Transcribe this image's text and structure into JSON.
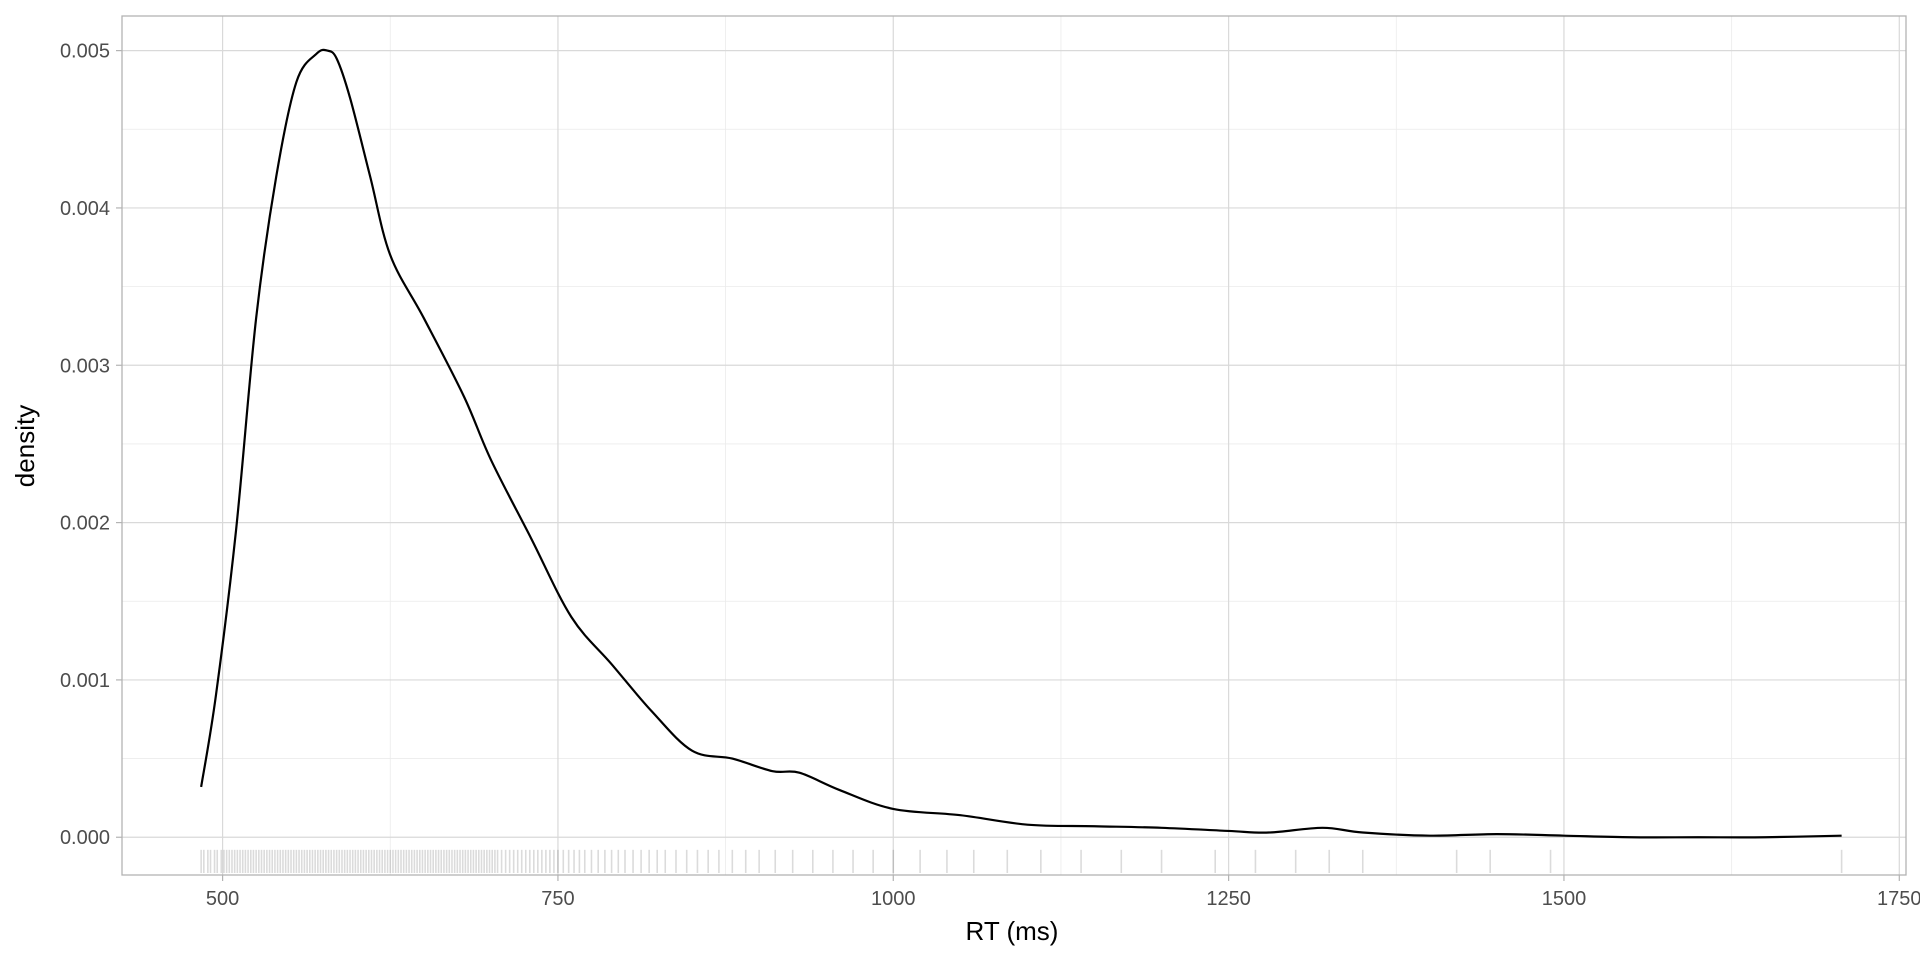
{
  "chart_data": {
    "type": "line",
    "xlabel": "RT (ms)",
    "ylabel": "density",
    "xlim": [
      425,
      1755
    ],
    "ylim": [
      -0.00024,
      0.00522
    ],
    "x_ticks": [
      500,
      750,
      1000,
      1250,
      1500,
      1750
    ],
    "x_tick_labels": [
      "500",
      "750",
      "1000",
      "1250",
      "1500",
      "1750"
    ],
    "y_ticks": [
      0.0,
      0.001,
      0.002,
      0.003,
      0.004,
      0.005
    ],
    "y_tick_labels": [
      "0.000",
      "0.001",
      "0.002",
      "0.003",
      "0.004",
      "0.005"
    ],
    "grid": true,
    "colors": {
      "line": "#000000",
      "rug": "#000000",
      "grid": "#d9d9d9"
    },
    "series": [
      {
        "x": [
          484,
          495,
          510,
          525,
          540,
          555,
          570,
          578,
          585,
          595,
          610,
          625,
          650,
          680,
          700,
          730,
          760,
          790,
          820,
          850,
          880,
          910,
          930,
          960,
          1000,
          1050,
          1100,
          1150,
          1200,
          1250,
          1280,
          1320,
          1350,
          1400,
          1450,
          1500,
          1550,
          1600,
          1650,
          1707
        ],
        "y": [
          0.00032,
          0.0009,
          0.00195,
          0.0033,
          0.0042,
          0.0048,
          0.00498,
          0.005,
          0.00495,
          0.0047,
          0.0042,
          0.0037,
          0.0033,
          0.0028,
          0.0024,
          0.0019,
          0.0014,
          0.0011,
          0.0008,
          0.00055,
          0.0005,
          0.00042,
          0.00041,
          0.0003,
          0.00018,
          0.00014,
          8e-05,
          7e-05,
          6e-05,
          4e-05,
          3e-05,
          6e-05,
          3e-05,
          1e-05,
          2e-05,
          1e-05,
          0.0,
          0.0,
          0.0,
          1e-05
        ]
      }
    ],
    "rug": [
      484,
      486,
      489,
      491,
      494,
      496,
      499,
      501,
      503,
      505,
      507,
      509,
      511,
      513,
      515,
      517,
      519,
      521,
      523,
      525,
      527,
      529,
      531,
      533,
      535,
      537,
      539,
      541,
      543,
      545,
      547,
      549,
      551,
      553,
      555,
      557,
      559,
      561,
      563,
      565,
      567,
      569,
      571,
      573,
      575,
      577,
      579,
      581,
      583,
      585,
      587,
      589,
      591,
      593,
      595,
      597,
      599,
      601,
      603,
      605,
      607,
      609,
      611,
      613,
      615,
      617,
      619,
      621,
      623,
      625,
      627,
      629,
      631,
      633,
      635,
      637,
      639,
      641,
      643,
      645,
      647,
      649,
      651,
      653,
      655,
      657,
      659,
      661,
      663,
      665,
      667,
      669,
      671,
      673,
      675,
      677,
      679,
      681,
      683,
      685,
      687,
      689,
      691,
      693,
      695,
      697,
      699,
      701,
      703,
      705,
      708,
      711,
      714,
      717,
      720,
      723,
      726,
      729,
      732,
      735,
      738,
      741,
      744,
      747,
      750,
      754,
      758,
      762,
      766,
      770,
      775,
      780,
      785,
      790,
      795,
      800,
      806,
      812,
      818,
      824,
      830,
      838,
      846,
      854,
      862,
      870,
      880,
      890,
      900,
      912,
      925,
      940,
      955,
      970,
      985,
      1000,
      1020,
      1040,
      1060,
      1085,
      1110,
      1140,
      1170,
      1200,
      1240,
      1270,
      1300,
      1325,
      1350,
      1420,
      1445,
      1490,
      1707
    ]
  }
}
